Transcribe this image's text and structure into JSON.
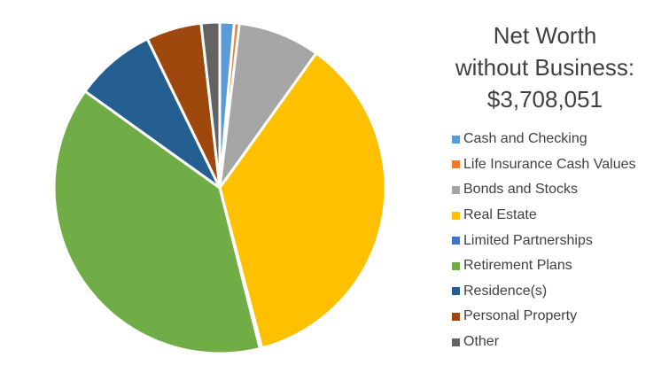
{
  "chart_data": {
    "type": "pie",
    "title_lines": [
      "Net Worth",
      "without Business:",
      "$3,708,051"
    ],
    "legend_position": "right",
    "start_angle_deg": 0,
    "direction": "clockwise",
    "slices": [
      {
        "label": "Cash and Checking",
        "value": 1.4,
        "color": "#5B9BD5"
      },
      {
        "label": "Life Insurance Cash Values",
        "value": 0.5,
        "color": "#ED7D31"
      },
      {
        "label": "Bonds and Stocks",
        "value": 8.0,
        "color": "#A5A5A5"
      },
      {
        "label": "Real Estate",
        "value": 36.0,
        "color": "#FFC000"
      },
      {
        "label": "Limited Partnerships",
        "value": 0.2,
        "color": "#4472C4"
      },
      {
        "label": "Retirement Plans",
        "value": 38.8,
        "color": "#70AD47"
      },
      {
        "label": "Residence(s)",
        "value": 7.9,
        "color": "#255E91"
      },
      {
        "label": "Personal Property",
        "value": 5.4,
        "color": "#9E480E"
      },
      {
        "label": "Other",
        "value": 1.8,
        "color": "#636363"
      }
    ]
  }
}
